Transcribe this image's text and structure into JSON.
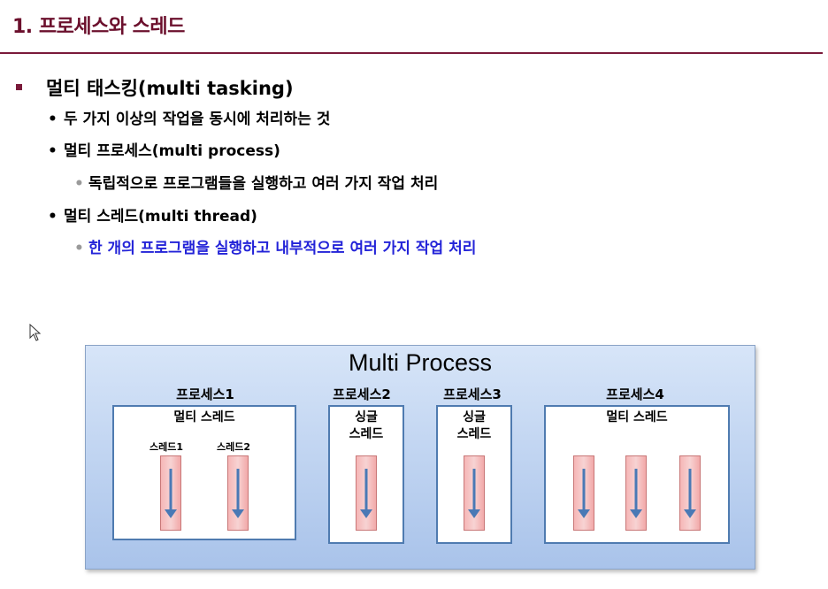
{
  "slide": {
    "title": "1. 프로세스와 스레드"
  },
  "bullets": {
    "level1": "멀티 태스킹(multi tasking)",
    "item1": "두 가지 이상의 작업을 동시에 처리하는 것",
    "item2": "멀티 프로세스(multi process)",
    "item2_sub": "독립적으로 프로그램들을 실행하고 여러 가지 작업 처리",
    "item3": "멀티 스레드(multi thread)",
    "item3_sub": "한 개의 프로그램을 실행하고 내부적으로 여러 가지 작업 처리",
    "level2_marker": "•",
    "level3_marker": "•"
  },
  "diagram": {
    "title": "Multi Process",
    "processes": [
      {
        "label": "프로세스1",
        "box_label": "멀티 스레드",
        "threads": [
          "스레드1",
          "스레드2"
        ]
      },
      {
        "label": "프로세스2",
        "box_label_line1": "싱글",
        "box_label_line2": "스레드"
      },
      {
        "label": "프로세스3",
        "box_label_line1": "싱글",
        "box_label_line2": "스레드"
      },
      {
        "label": "프로세스4",
        "box_label": "멀티 스레드"
      }
    ]
  },
  "colors": {
    "title": "#6b0f2c",
    "rule": "#7a1a3a",
    "accent_text": "#2323d8",
    "box_border": "#4f7bb0",
    "thread_fill": "#f6b6b6",
    "arrow": "#4a79b5"
  },
  "icons": {
    "cursor": "mouse-pointer-icon",
    "thread_arrow": "arrow-down-icon"
  }
}
